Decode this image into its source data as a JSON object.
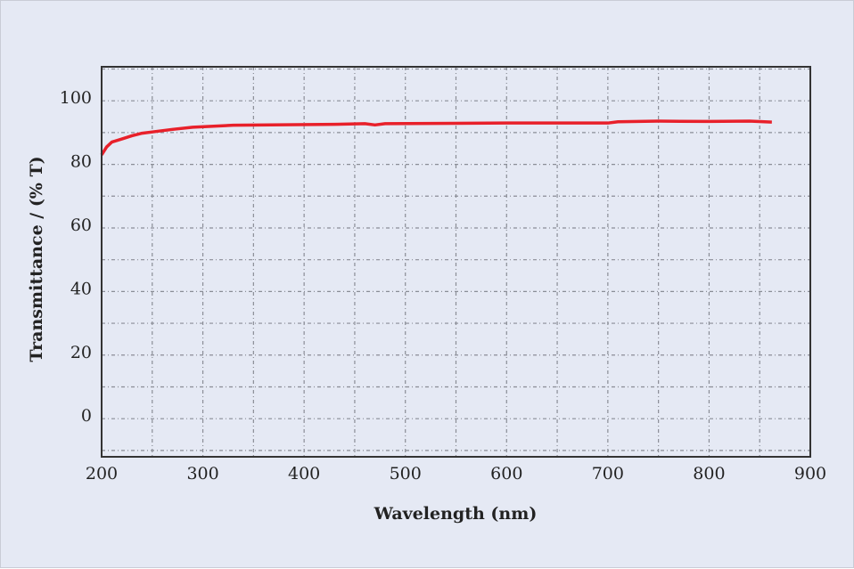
{
  "chart_data": {
    "type": "line",
    "title": "",
    "xlabel": "Wavelength (nm)",
    "ylabel": "Transmittance / (% T)",
    "xlim": [
      200,
      900
    ],
    "ylim": [
      -12,
      110.7
    ],
    "xticks": [
      200,
      300,
      400,
      500,
      600,
      700,
      800,
      900
    ],
    "yticks": [
      0,
      20,
      40,
      60,
      80,
      100
    ],
    "grid": true,
    "grid_step": {
      "x": 50,
      "y": 10
    },
    "series": [
      {
        "color": "#e8202a",
        "x": [
          200,
          205,
          210,
          220,
          230,
          240,
          250,
          270,
          290,
          330,
          430,
          460,
          470,
          480,
          600,
          700,
          710,
          750,
          800,
          840,
          862
        ],
        "y": [
          83,
          85.5,
          87,
          88,
          89,
          89.8,
          90.2,
          91,
          91.7,
          92.3,
          92.6,
          92.8,
          92.4,
          92.8,
          93,
          93,
          93.4,
          93.6,
          93.5,
          93.6,
          93.3
        ]
      }
    ]
  }
}
